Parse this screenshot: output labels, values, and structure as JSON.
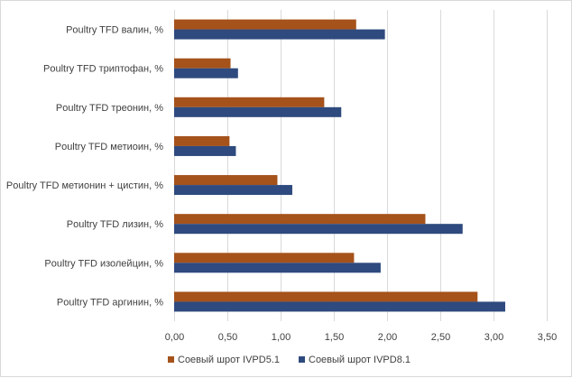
{
  "chart_data": {
    "type": "bar",
    "orientation": "horizontal",
    "categories": [
      "Poultry TFD валин, %",
      "Poultry TFD триптофан, %",
      "Poultry TFD треонин, %",
      "Poultry TFD метиоин, %",
      "Poultry TFD метионин + цистин, %",
      "Poultry TFD лизин, %",
      "Poultry TFD изолейцин, %",
      "Poultry TFD аргинин, %"
    ],
    "series": [
      {
        "name": "Соевый шрот  IVPD5.1",
        "color": "#a5521b",
        "values": [
          1.71,
          0.53,
          1.41,
          0.52,
          0.97,
          2.36,
          1.69,
          2.85
        ]
      },
      {
        "name": "Соевый шрот  IVPD8.1",
        "color": "#2e4a7e",
        "values": [
          1.98,
          0.6,
          1.57,
          0.58,
          1.11,
          2.71,
          1.94,
          3.11
        ]
      }
    ],
    "xlim": [
      0,
      3.5
    ],
    "xticks": [
      "0,00",
      "0,50",
      "1,00",
      "1,50",
      "2,00",
      "2,50",
      "3,00",
      "3,50"
    ],
    "grid": true,
    "legend_position": "bottom"
  }
}
